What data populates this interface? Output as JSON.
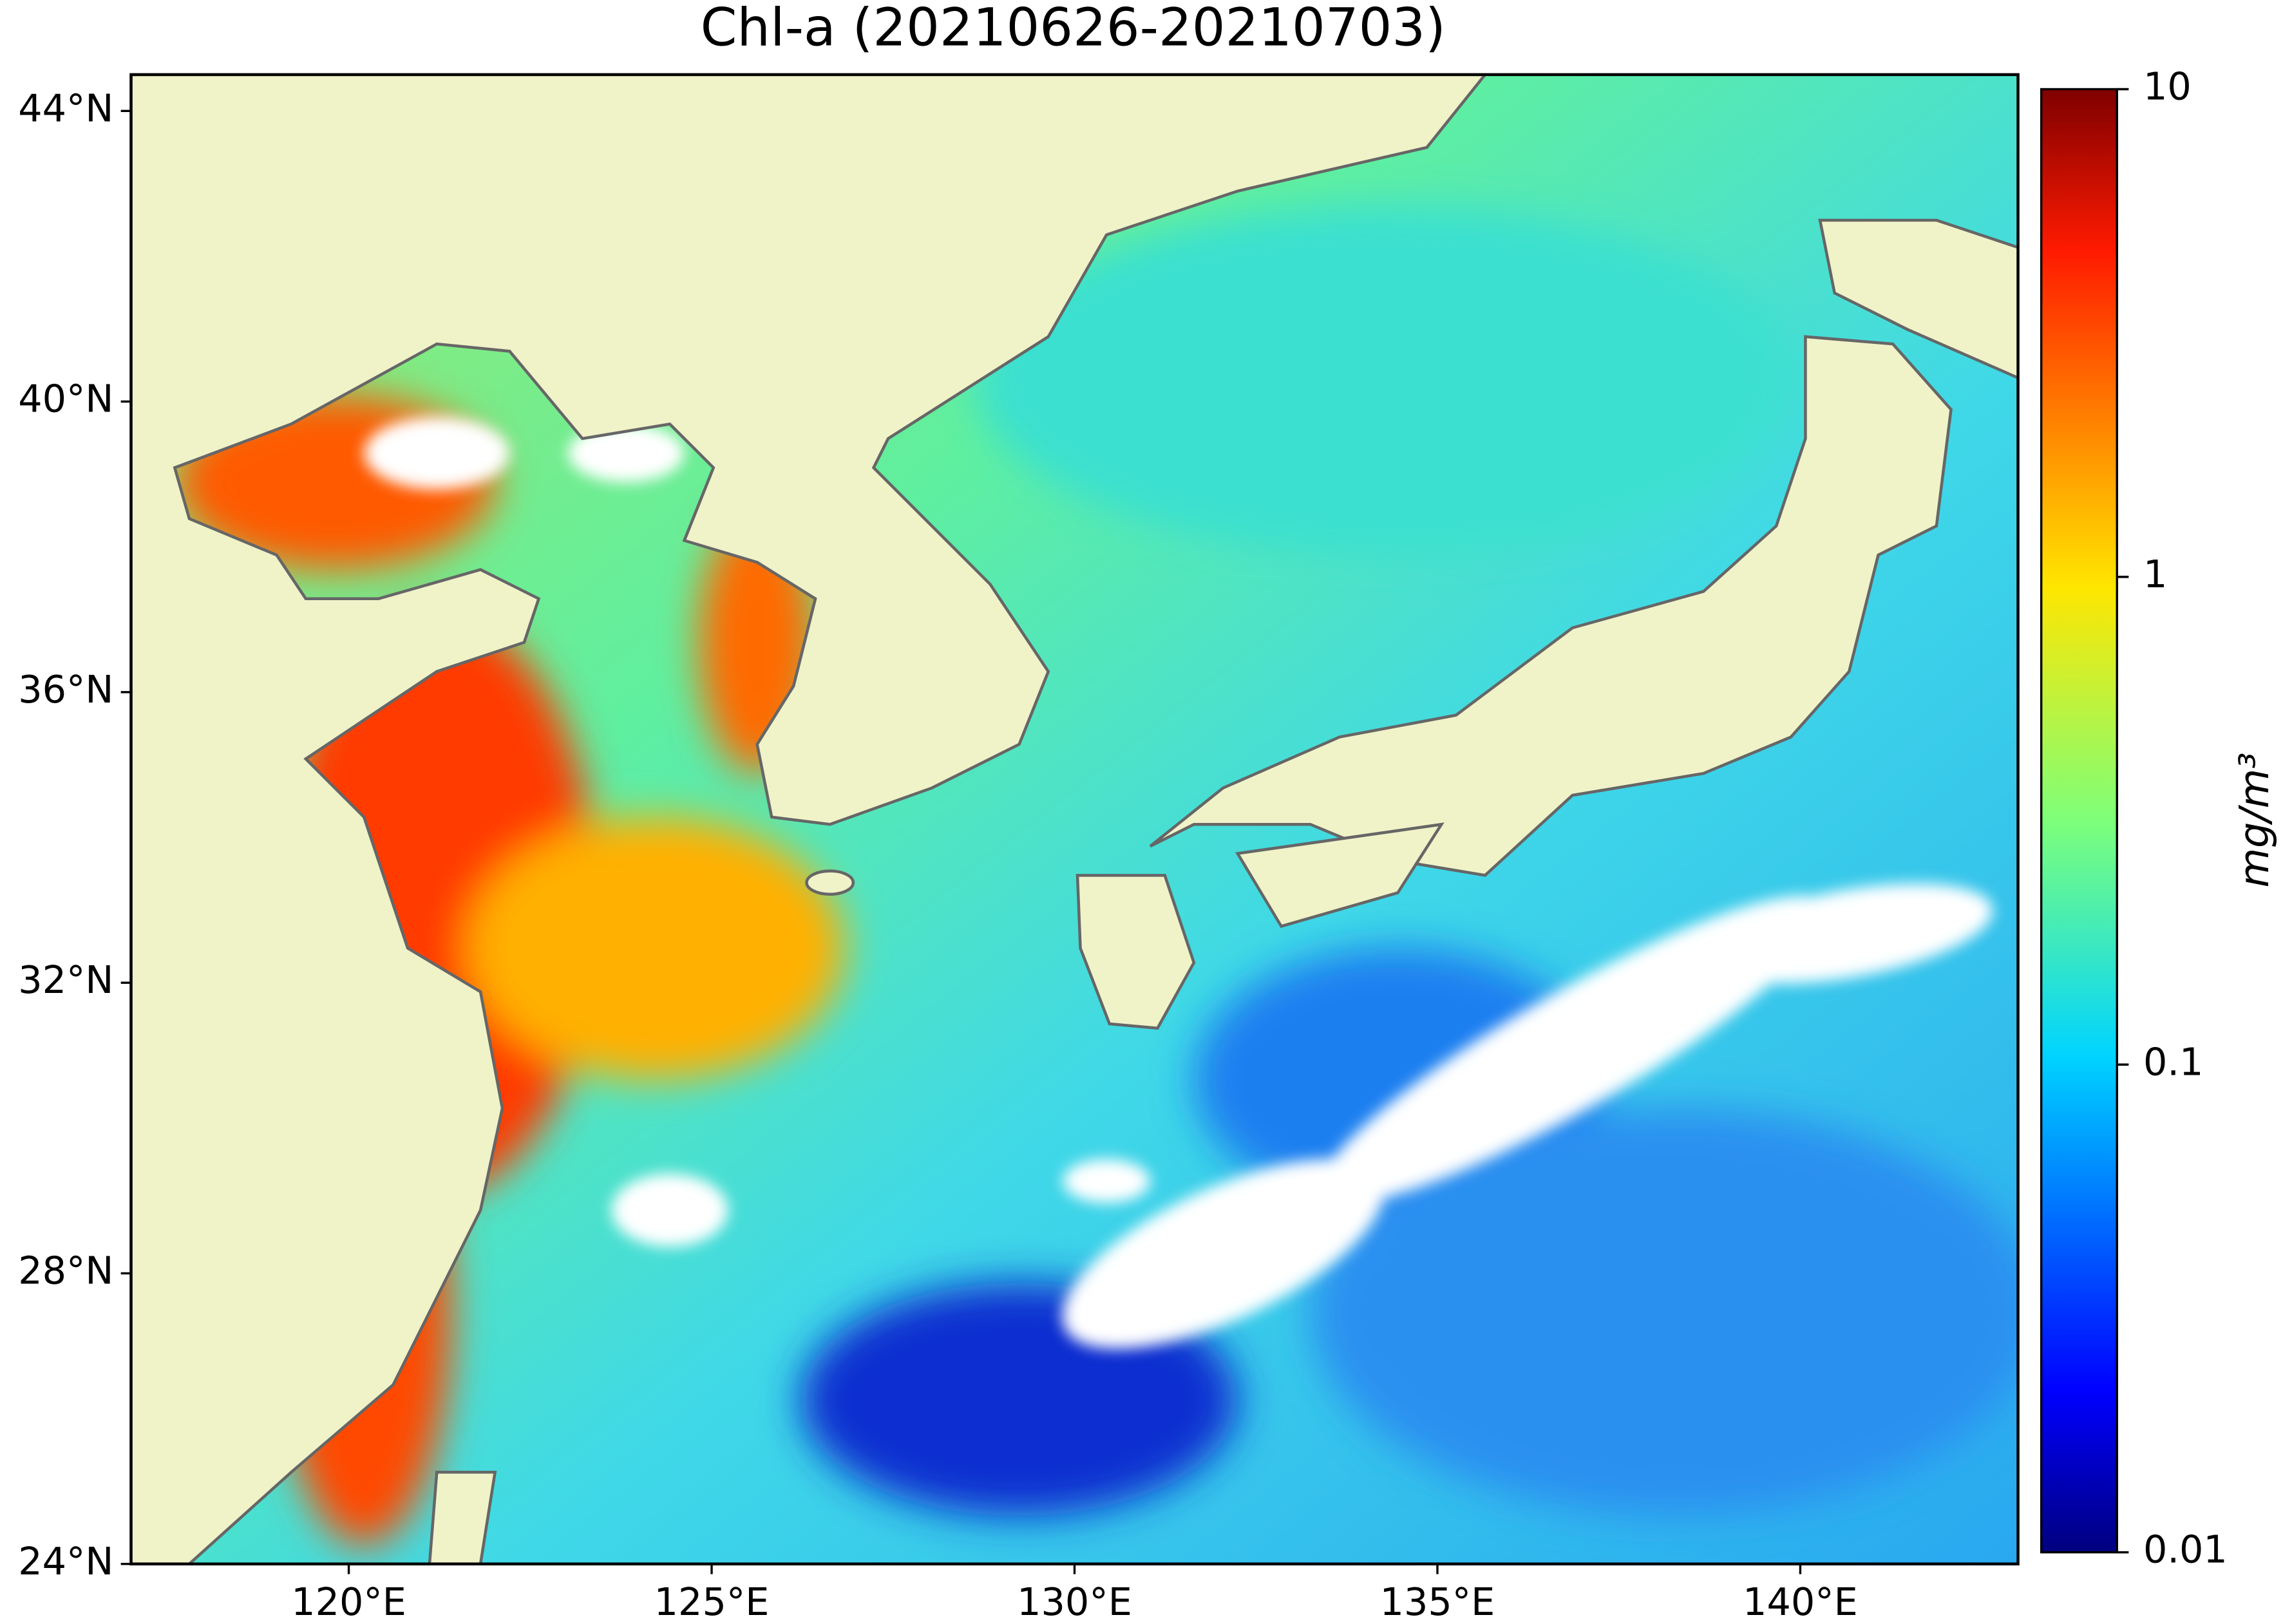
{
  "map": {
    "title": "Chl-a (20210626-20210703)",
    "xlim": [
      117,
      143
    ],
    "ylim": [
      24,
      44.5
    ],
    "xticks": [
      {
        "value": 120,
        "label": "120°E"
      },
      {
        "value": 125,
        "label": "125°E"
      },
      {
        "value": 130,
        "label": "130°E"
      },
      {
        "value": 135,
        "label": "135°E"
      },
      {
        "value": 140,
        "label": "140°E"
      }
    ],
    "yticks": [
      {
        "value": 24,
        "label": "24°N"
      },
      {
        "value": 28,
        "label": "28°N"
      },
      {
        "value": 32,
        "label": "32°N"
      },
      {
        "value": 36,
        "label": "36°N"
      },
      {
        "value": 40,
        "label": "40°N"
      },
      {
        "value": 44,
        "label": "44°N"
      }
    ],
    "colorbar": {
      "label": "mg/m³",
      "lim": [
        0.01,
        10
      ],
      "ticks": [
        0.01,
        0.1,
        1,
        10
      ],
      "log": true
    }
  }
}
